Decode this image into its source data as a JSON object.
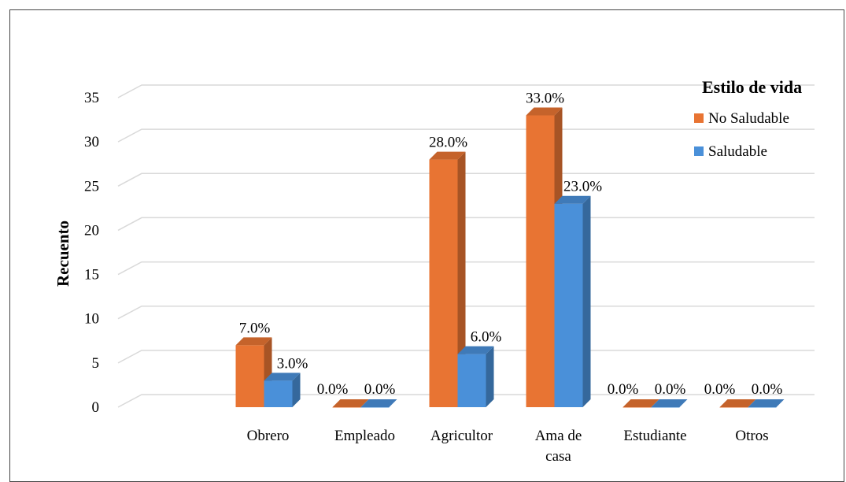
{
  "chart_data": {
    "type": "bar",
    "title": "",
    "xlabel": "",
    "ylabel": "Recuento",
    "ylim": [
      0,
      35
    ],
    "yticks": [
      0,
      5,
      10,
      15,
      20,
      25,
      30,
      35
    ],
    "grid": true,
    "legend_position": "top-right",
    "categories": [
      "Obrero",
      "Empleado",
      "Agricultor",
      "Ama de casa",
      "Estudiante",
      "Otros"
    ],
    "category_lines": [
      [
        "Obrero"
      ],
      [
        "Empleado"
      ],
      [
        "Agricultor"
      ],
      [
        "Ama de",
        "casa"
      ],
      [
        "Estudiante"
      ],
      [
        "Otros"
      ]
    ],
    "legend_title": "Estilo de vida",
    "series": [
      {
        "name": "No Saludable",
        "color": "#E87433",
        "values": [
          7,
          0,
          28,
          33,
          0,
          0
        ],
        "labels": [
          "7.0%",
          "0.0%",
          "28.0%",
          "33.0%",
          "0.0%",
          "0.0%"
        ]
      },
      {
        "name": "Saludable",
        "color": "#4A90D9",
        "values": [
          3,
          0,
          6,
          23,
          0,
          0
        ],
        "labels": [
          "3.0%",
          "0.0%",
          "6.0%",
          "23.0%",
          "0.0%",
          "0.0%"
        ]
      }
    ]
  }
}
